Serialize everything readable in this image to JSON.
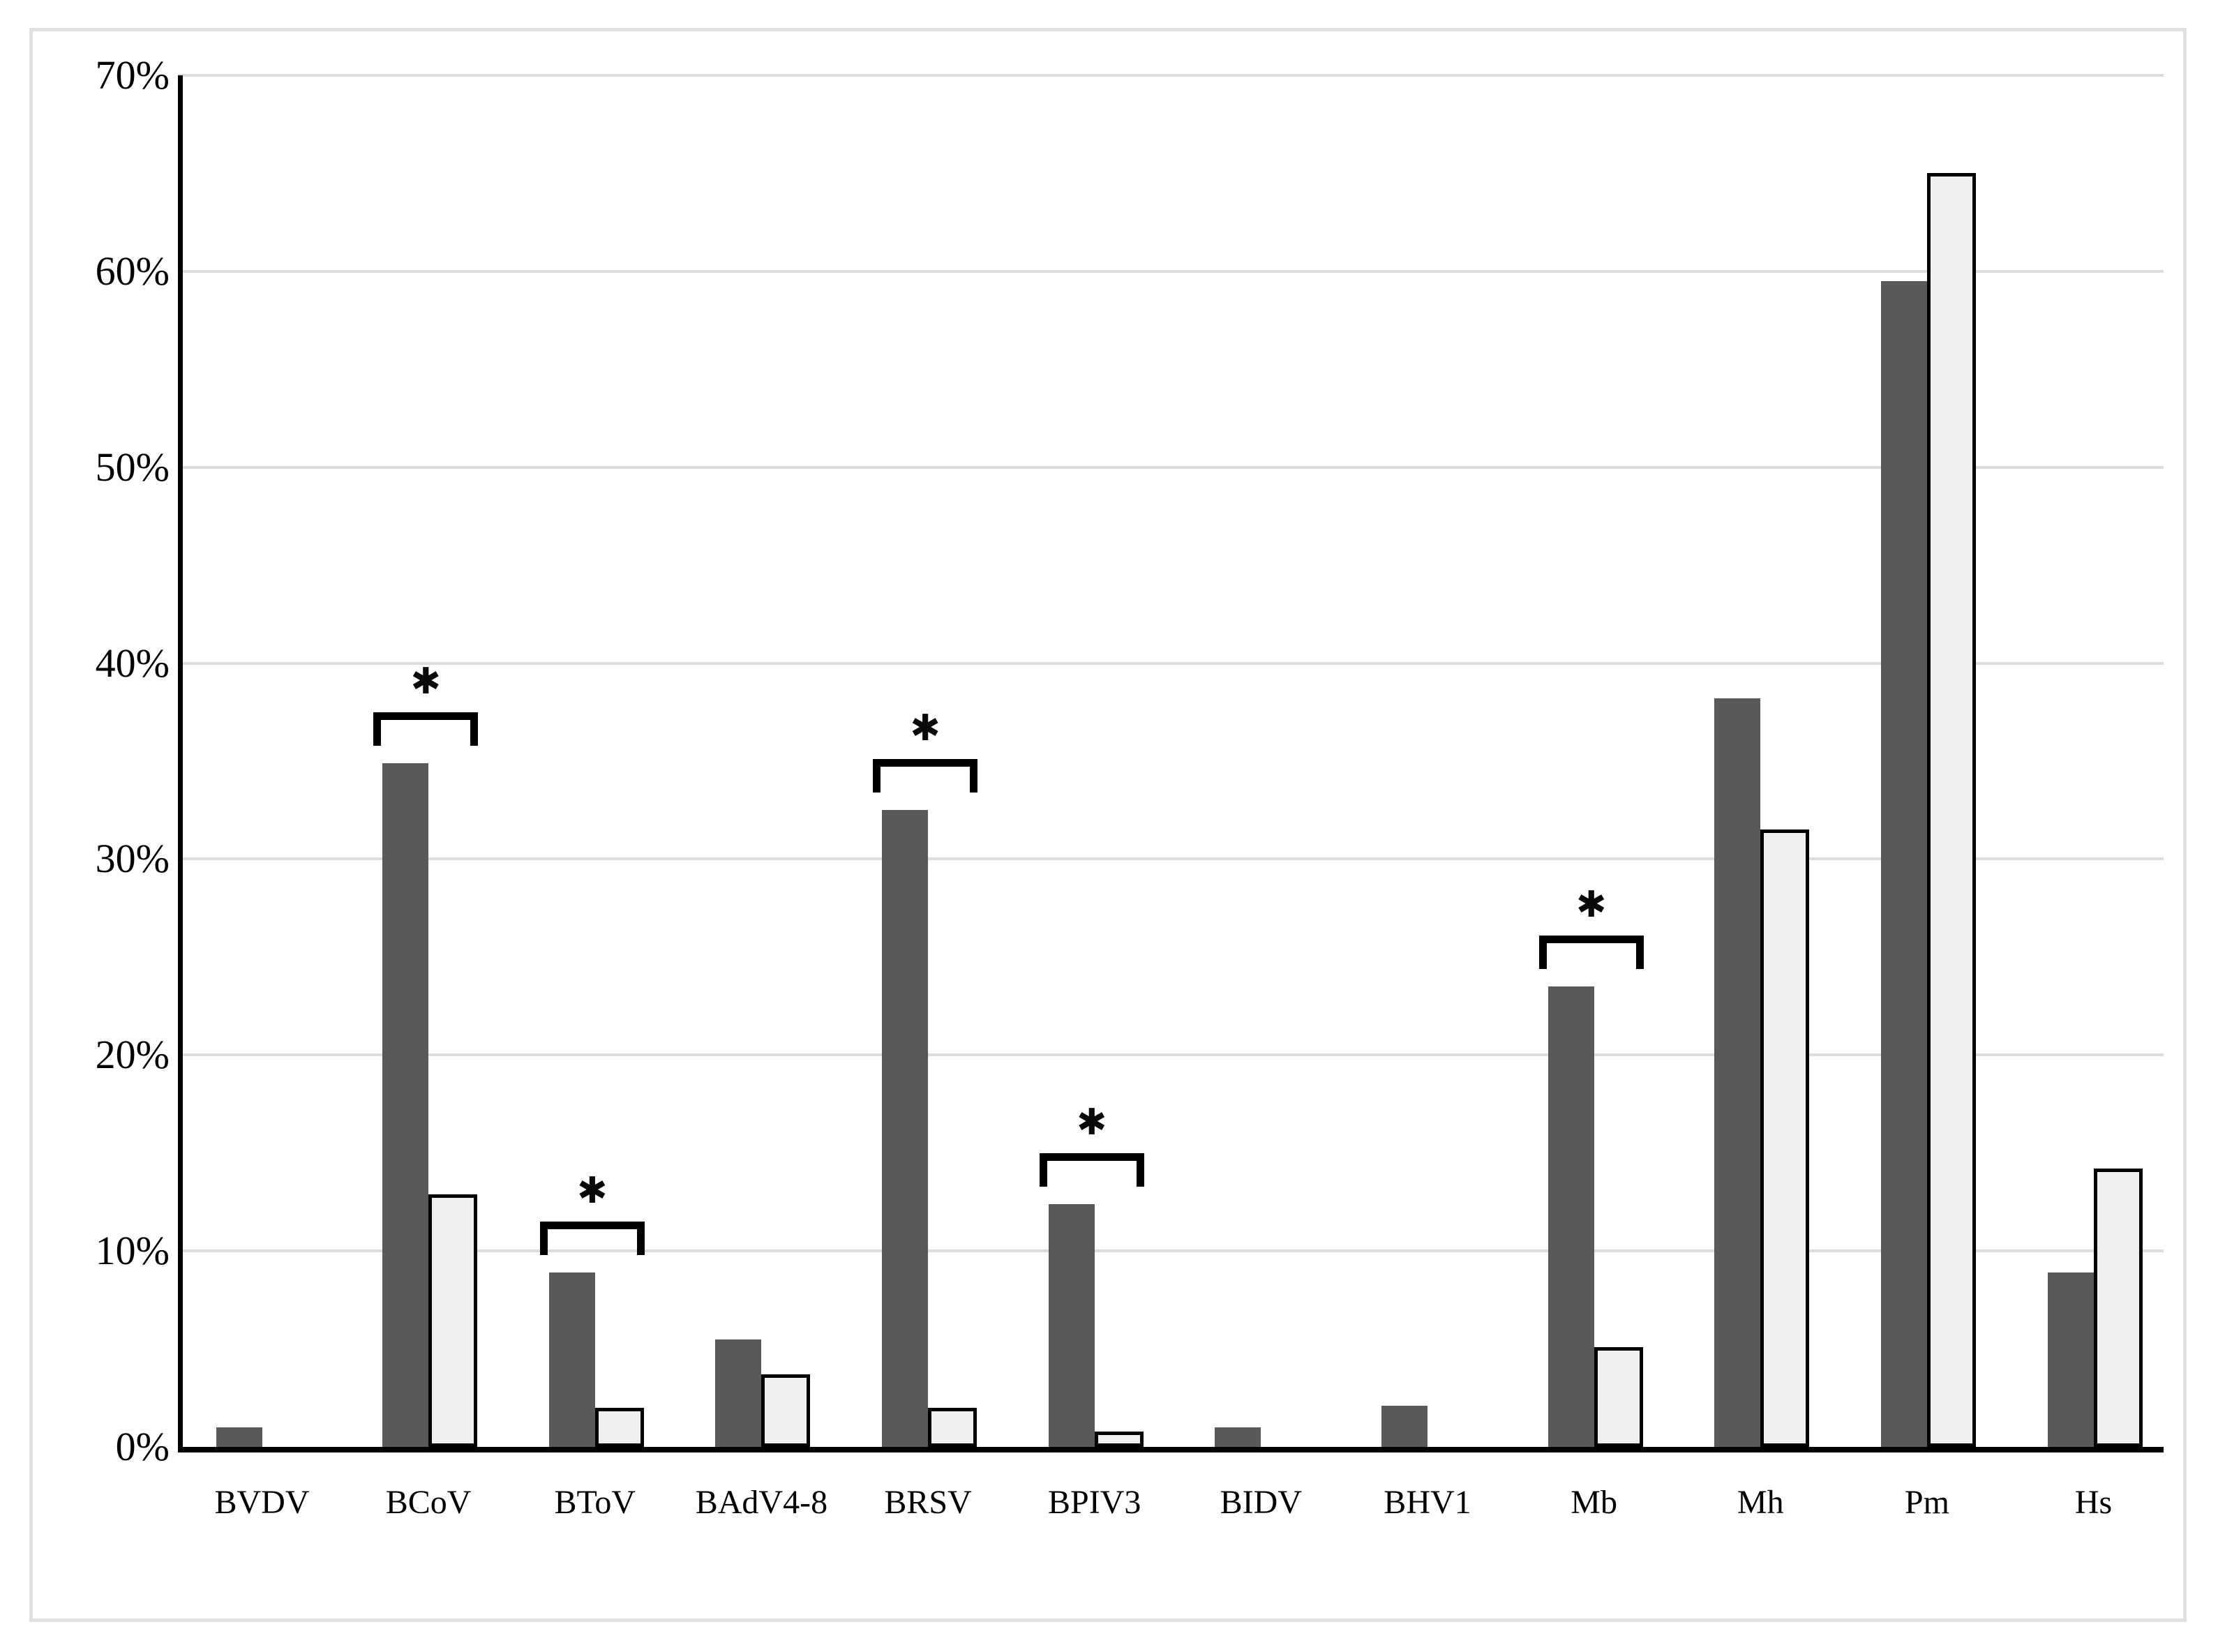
{
  "figure": {
    "background": "#ffffff",
    "border_color": "#e0e0e0"
  },
  "chart_data": {
    "type": "bar",
    "title": "",
    "xlabel": "",
    "ylabel": "",
    "categories": [
      "BVDV",
      "BCoV",
      "BToV",
      "BAdV4-8",
      "BRSV",
      "BPIV3",
      "BIDV",
      "BHV1",
      "Mb",
      "Mh",
      "Pm",
      "Hs"
    ],
    "series": [
      {
        "name": "dark-gray-bars",
        "color": "#595959",
        "values": [
          1.0,
          34.9,
          8.9,
          5.5,
          32.5,
          12.4,
          1.0,
          2.1,
          23.5,
          38.2,
          59.5,
          8.9
        ]
      },
      {
        "name": "light-outlined-bars",
        "color": "#f0f0f0",
        "border_color": "#000000",
        "values": [
          0,
          12.9,
          2.0,
          3.7,
          2.0,
          0.8,
          0,
          0,
          5.1,
          31.5,
          65.0,
          14.2
        ]
      }
    ],
    "significance": {
      "symbol": "✱",
      "flagged_categories": [
        "BCoV",
        "BToV",
        "BRSV",
        "BPIV3",
        "Mb"
      ]
    },
    "y_axis": {
      "min": 0,
      "max": 70,
      "tick_step": 10,
      "tick_labels": [
        "0%",
        "10%",
        "20%",
        "30%",
        "40%",
        "50%",
        "60%",
        "70%"
      ],
      "grid": true,
      "grid_color": "#dcdcdc",
      "axis_color": "#000000"
    },
    "legend": {
      "visible": false
    },
    "layout_hints": {
      "grid_on": true,
      "bars_per_group": 2,
      "legend_position": "none"
    }
  }
}
